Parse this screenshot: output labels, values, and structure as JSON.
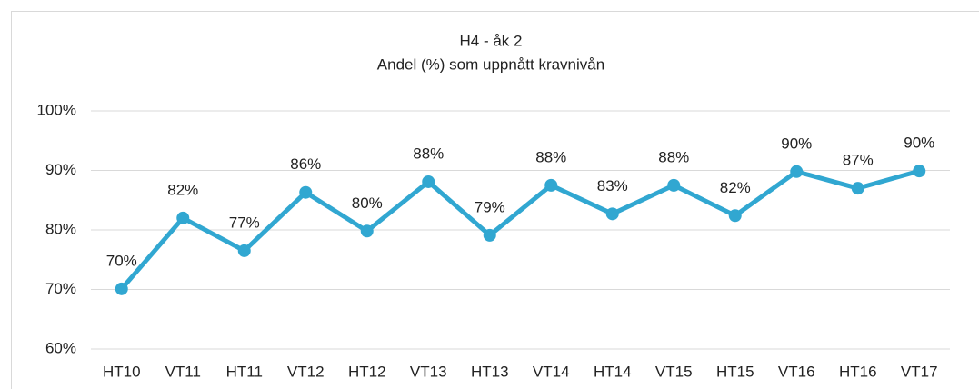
{
  "chart_data": {
    "type": "line",
    "title": "H4 - åk 2",
    "subtitle": "Andel (%) som uppnått kravnivån",
    "categories": [
      "HT10",
      "VT11",
      "HT11",
      "VT12",
      "HT12",
      "VT13",
      "HT13",
      "VT14",
      "HT14",
      "VT15",
      "HT15",
      "VT16",
      "HT16",
      "VT17"
    ],
    "series": [
      {
        "color": "#31a7d1",
        "values": [
          70.1,
          82,
          76.5,
          86.3,
          79.8,
          88.1,
          79.1,
          87.5,
          82.7,
          87.5,
          82.4,
          89.8,
          87.0,
          89.9
        ],
        "value_labels": [
          "70%",
          "82%",
          "77%",
          "86%",
          "80%",
          "88%",
          "79%",
          "88%",
          "83%",
          "88%",
          "82%",
          "90%",
          "87%",
          "90%"
        ]
      }
    ],
    "ylim": [
      60,
      100
    ],
    "yticks": [
      {
        "value": 60,
        "label": "60%"
      },
      {
        "value": 70,
        "label": "70%"
      },
      {
        "value": 80,
        "label": "80%"
      },
      {
        "value": 90,
        "label": "90%"
      },
      {
        "value": 100,
        "label": "100%"
      }
    ],
    "grid": true
  }
}
